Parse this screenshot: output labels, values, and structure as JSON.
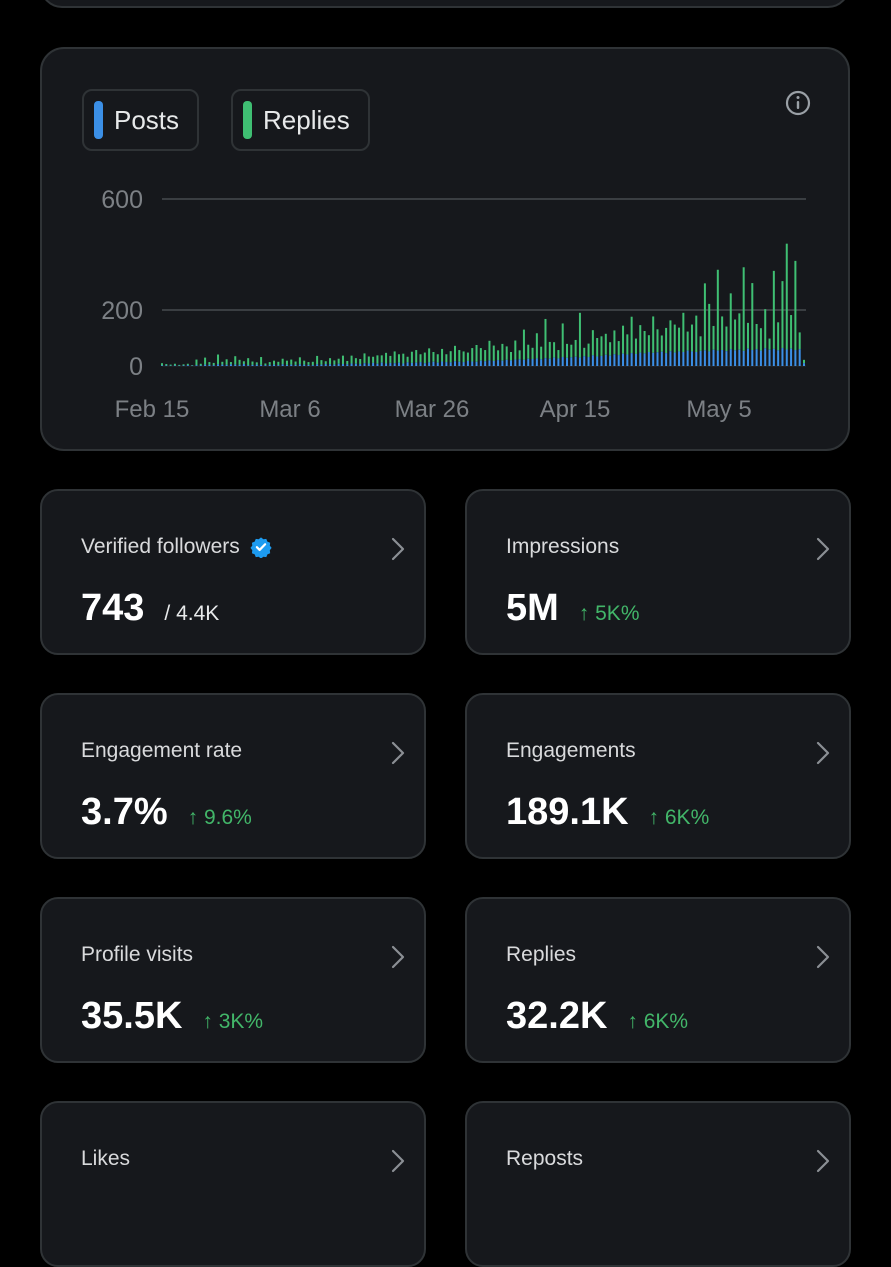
{
  "legend": {
    "posts_label": "Posts",
    "replies_label": "Replies"
  },
  "colors": {
    "posts": "#3b8fe6",
    "replies": "#3fbf73",
    "up": "#42b669",
    "card_bg": "#16181c",
    "border": "#2f3336",
    "verified": "#1d9bf0"
  },
  "icons": {
    "info": "info-circle-icon",
    "verified": "verified-badge-icon",
    "chevron": "chevron-right-icon"
  },
  "chart_data": {
    "type": "bar",
    "stacked": true,
    "x_start": "Feb 15",
    "x_ticks": [
      "Feb 15",
      "Mar 6",
      "Mar 26",
      "Apr 15",
      "May 5"
    ],
    "y_ticks": [
      0,
      200,
      600
    ],
    "ylim": [
      0,
      600
    ],
    "grid": true,
    "legend_position": "top-left",
    "series": [
      {
        "name": "Posts",
        "values": [
          2,
          2,
          1,
          2,
          1,
          2,
          3,
          1,
          3,
          2,
          5,
          4,
          3,
          6,
          5,
          4,
          6,
          5,
          4,
          7,
          3,
          4,
          5,
          4,
          3,
          4,
          5,
          3,
          6,
          4,
          5,
          4,
          6,
          5,
          4,
          3,
          6,
          5,
          7,
          6,
          5,
          8,
          7,
          6,
          9,
          8,
          7,
          10,
          9,
          11,
          8,
          12,
          9,
          11,
          10,
          12,
          9,
          13,
          11,
          12,
          14,
          10,
          13,
          15,
          12,
          16,
          14,
          13,
          17,
          15,
          14,
          18,
          16,
          15,
          19,
          17,
          20,
          18,
          21,
          19,
          22,
          20,
          23,
          24,
          22,
          26,
          25,
          27,
          24,
          28,
          26,
          30,
          27,
          32,
          29,
          31,
          33,
          30,
          35,
          32,
          38,
          34,
          36,
          40,
          37,
          42,
          39,
          44,
          41,
          46,
          43,
          48,
          45,
          50,
          47,
          49,
          51,
          46,
          53,
          48,
          52,
          50,
          55,
          52,
          50,
          54,
          56,
          52,
          58,
          55,
          57,
          53,
          60,
          56,
          58,
          54,
          62,
          57,
          60,
          55,
          63,
          58,
          61,
          56,
          64,
          59,
          62,
          57,
          60,
          10
        ]
      },
      {
        "name": "Replies",
        "values": [
          8,
          5,
          4,
          6,
          3,
          4,
          5,
          2,
          20,
          6,
          25,
          10,
          8,
          35,
          10,
          20,
          8,
          30,
          18,
          10,
          25,
          12,
          8,
          28,
          6,
          10,
          14,
          12,
          20,
          15,
          18,
          12,
          25,
          14,
          10,
          12,
          30,
          16,
          10,
          22,
          15,
          18,
          30,
          12,
          28,
          20,
          18,
          35,
          25,
          22,
          30,
          26,
          38,
          25,
          42,
          30,
          35,
          20,
          40,
          45,
          28,
          38,
          50,
          35,
          30,
          45,
          28,
          40,
          55,
          42,
          38,
          30,
          48,
          60,
          45,
          40,
          70,
          55,
          35,
          60,
          48,
          30,
          68,
          32,
          108,
          50,
          40,
          90,
          45,
          140,
          60,
          55,
          30,
          120,
          50,
          45,
          60,
          160,
          30,
          48,
          90,
          66,
          70,
          75,
          48,
          85,
          50,
          100,
          72,
          130,
          55,
          98,
          80,
          60,
          130,
          82,
          58,
          90,
          110,
          100,
          85,
          140,
          68,
          96,
          130,
          52,
          240,
          170,
          85,
          290,
          120,
          88,
          200,
          110,
          130,
          300,
          92,
          240,
          90,
          80,
          140,
          40,
          280,
          100,
          240,
          380,
          120,
          320,
          60,
          12
        ]
      }
    ]
  },
  "metrics": [
    {
      "label": "Verified followers",
      "value": "743",
      "suffix": "/ 4.4K",
      "verified": true
    },
    {
      "label": "Impressions",
      "value": "5M",
      "change": "↑ 5K%"
    },
    {
      "label": "Engagement rate",
      "value": "3.7%",
      "change": "↑ 9.6%"
    },
    {
      "label": "Engagements",
      "value": "189.1K",
      "change": "↑ 6K%"
    },
    {
      "label": "Profile visits",
      "value": "35.5K",
      "change": "↑ 3K%"
    },
    {
      "label": "Replies",
      "value": "32.2K",
      "change": "↑ 6K%"
    },
    {
      "label": "Likes",
      "value": "",
      "change": ""
    },
    {
      "label": "Reposts",
      "value": "",
      "change": ""
    }
  ]
}
